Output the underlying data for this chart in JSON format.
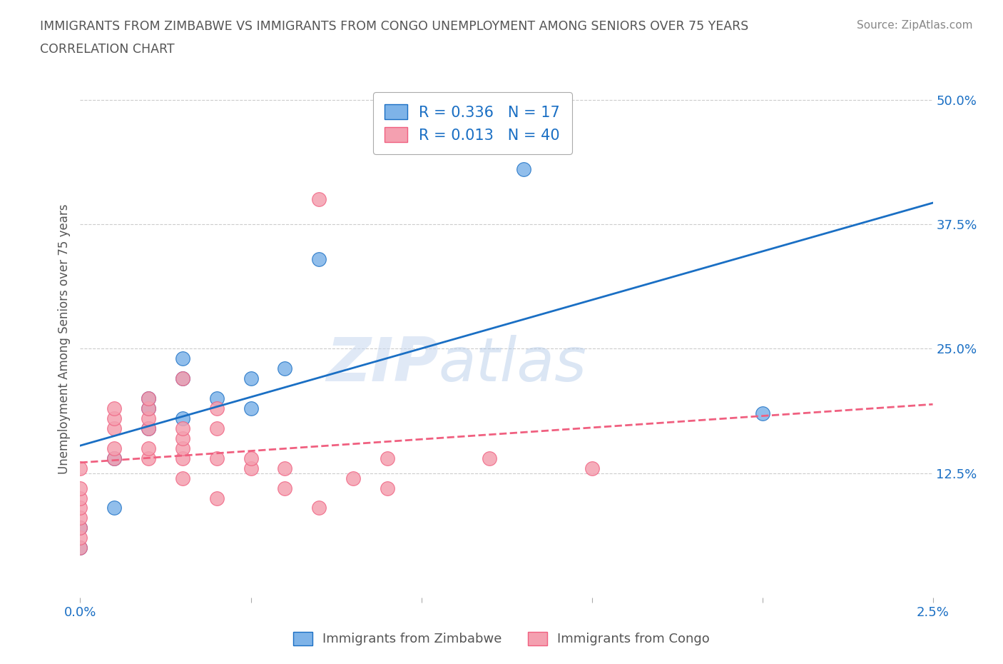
{
  "title_line1": "IMMIGRANTS FROM ZIMBABWE VS IMMIGRANTS FROM CONGO UNEMPLOYMENT AMONG SENIORS OVER 75 YEARS",
  "title_line2": "CORRELATION CHART",
  "source": "Source: ZipAtlas.com",
  "ylabel": "Unemployment Among Seniors over 75 years",
  "r_zimbabwe": 0.336,
  "n_zimbabwe": 17,
  "r_congo": 0.013,
  "n_congo": 40,
  "color_zimbabwe": "#7eb3e8",
  "color_congo": "#f4a0b0",
  "color_line_zimbabwe": "#1a6fc4",
  "color_line_congo": "#f06080",
  "watermark_zip": "ZIP",
  "watermark_atlas": "atlas",
  "xlim": [
    0.0,
    0.025
  ],
  "ylim": [
    0.0,
    0.52
  ],
  "xticks": [
    0.0,
    0.005,
    0.01,
    0.015,
    0.02,
    0.025
  ],
  "xticklabels": [
    "0.0%",
    "",
    "",
    "",
    "",
    "2.5%"
  ],
  "ytick_positions": [
    0.0,
    0.125,
    0.25,
    0.375,
    0.5
  ],
  "yticklabels": [
    "",
    "12.5%",
    "25.0%",
    "37.5%",
    "50.0%"
  ],
  "zimbabwe_x": [
    0.0,
    0.0,
    0.001,
    0.001,
    0.002,
    0.002,
    0.002,
    0.003,
    0.003,
    0.003,
    0.004,
    0.005,
    0.005,
    0.006,
    0.007,
    0.013,
    0.02
  ],
  "zimbabwe_y": [
    0.05,
    0.07,
    0.09,
    0.14,
    0.17,
    0.19,
    0.2,
    0.18,
    0.22,
    0.24,
    0.2,
    0.22,
    0.19,
    0.23,
    0.34,
    0.43,
    0.185
  ],
  "congo_x": [
    0.0,
    0.0,
    0.0,
    0.0,
    0.0,
    0.0,
    0.0,
    0.0,
    0.001,
    0.001,
    0.001,
    0.001,
    0.001,
    0.002,
    0.002,
    0.002,
    0.002,
    0.002,
    0.002,
    0.003,
    0.003,
    0.003,
    0.003,
    0.003,
    0.003,
    0.004,
    0.004,
    0.004,
    0.004,
    0.005,
    0.005,
    0.006,
    0.006,
    0.007,
    0.007,
    0.008,
    0.009,
    0.009,
    0.012,
    0.015
  ],
  "congo_y": [
    0.05,
    0.06,
    0.07,
    0.08,
    0.09,
    0.1,
    0.11,
    0.13,
    0.14,
    0.15,
    0.17,
    0.18,
    0.19,
    0.14,
    0.15,
    0.17,
    0.18,
    0.19,
    0.2,
    0.12,
    0.14,
    0.15,
    0.16,
    0.17,
    0.22,
    0.1,
    0.14,
    0.17,
    0.19,
    0.13,
    0.14,
    0.11,
    0.13,
    0.09,
    0.4,
    0.12,
    0.11,
    0.14,
    0.14,
    0.13
  ],
  "legend_label_zimbabwe": "Immigrants from Zimbabwe",
  "legend_label_congo": "Immigrants from Congo",
  "background_color": "#ffffff",
  "grid_color": "#cccccc"
}
